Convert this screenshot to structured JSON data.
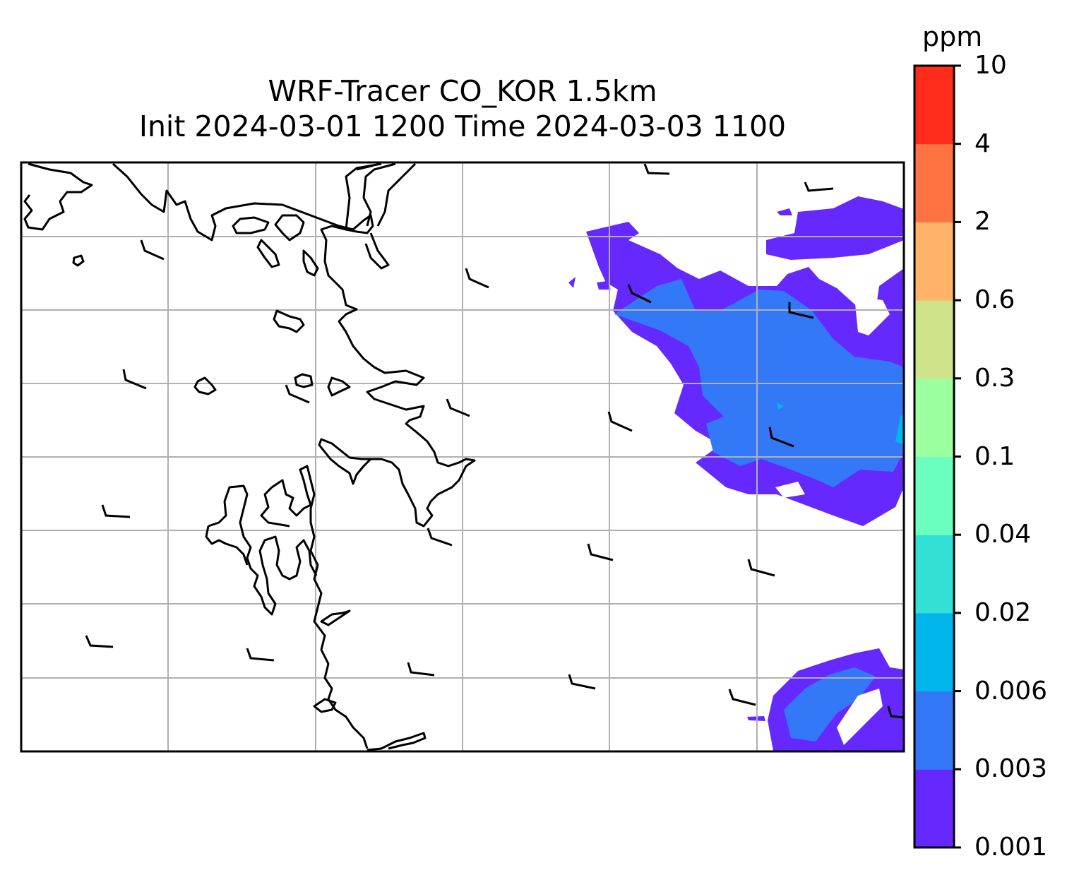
{
  "title": {
    "line1": "WRF-Tracer CO_KOR 1.5km",
    "line2": "Init 2024-03-01 1200 Time 2024-03-03 1100"
  },
  "colorbar": {
    "unit": "ppm",
    "levels": [
      "0.001",
      "0.003",
      "0.006",
      "0.02",
      "0.04",
      "0.1",
      "0.3",
      "0.6",
      "2",
      "4",
      "10"
    ],
    "colors": [
      "#6529ff",
      "#3378f6",
      "#00b6ec",
      "#33e0d5",
      "#6affbe",
      "#9cffa0",
      "#cfe48a",
      "#feb368",
      "#ff7342",
      "#ff2c1b"
    ]
  },
  "colors": {
    "grid": "#b0b0b0",
    "coastline": "#000000",
    "wind_barb": "#000000"
  }
}
